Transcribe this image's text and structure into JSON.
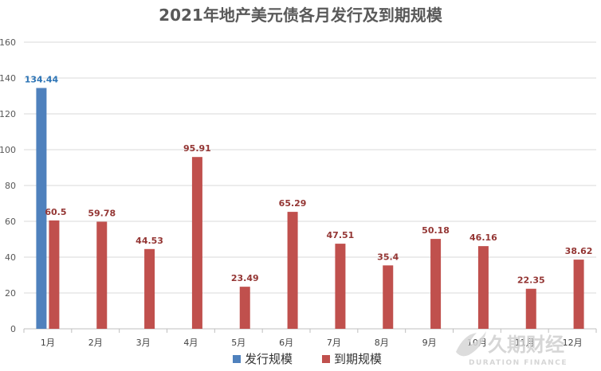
{
  "chart_data": {
    "type": "bar",
    "title": "2021年地产美元债各月发行及到期规模",
    "categories": [
      "1月",
      "2月",
      "3月",
      "4月",
      "5月",
      "6月",
      "7月",
      "8月",
      "9月",
      "10月",
      "11月",
      "12月"
    ],
    "series": [
      {
        "name": "发行规模",
        "color": "#4f81bd",
        "label_color": "#2e75b6",
        "values": [
          134.44,
          null,
          null,
          null,
          null,
          null,
          null,
          null,
          null,
          null,
          null,
          null
        ]
      },
      {
        "name": "到期规模",
        "color": "#c0504d",
        "label_color": "#943634",
        "values": [
          60.5,
          59.78,
          44.53,
          95.91,
          23.49,
          65.29,
          47.51,
          35.4,
          50.18,
          46.16,
          22.35,
          38.62
        ]
      }
    ],
    "ylim": [
      0,
      160
    ],
    "yticks": [
      0,
      20,
      40,
      60,
      80,
      100,
      120,
      140,
      160
    ],
    "grid": true,
    "legend_position": "bottom"
  },
  "watermark": {
    "main": "久期财经",
    "sub": "DURATION FINANCE"
  }
}
